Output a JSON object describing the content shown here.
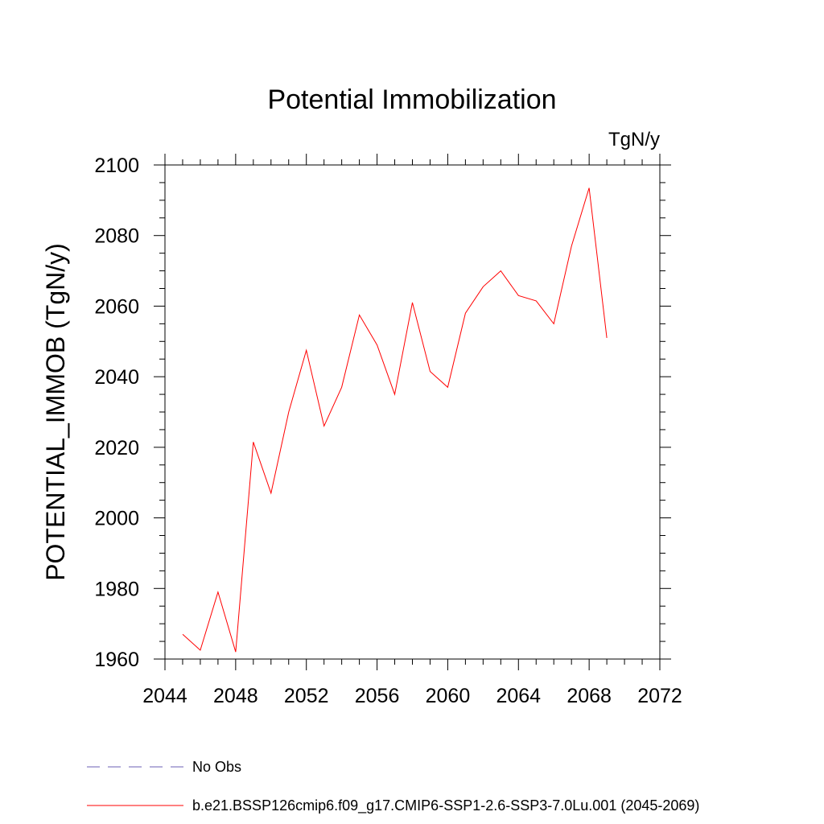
{
  "chart_data": {
    "type": "line",
    "title": "Potential Immobilization",
    "units": "TgN/y",
    "xlabel": "",
    "ylabel": "POTENTIAL_IMMOB  (TgN/y)",
    "xlim": [
      2044,
      2072
    ],
    "ylim": [
      1960,
      2100
    ],
    "x_ticks": [
      2044,
      2048,
      2052,
      2056,
      2060,
      2064,
      2068,
      2072
    ],
    "y_ticks": [
      1960,
      1980,
      2000,
      2020,
      2040,
      2060,
      2080,
      2100
    ],
    "grid": false,
    "legend_position": "bottom-left",
    "series": [
      {
        "name": "No Obs",
        "color": "#6b5fb5",
        "dash": "dashed",
        "x": [],
        "y": []
      },
      {
        "name": "b.e21.BSSP126cmip6.f09_g17.CMIP6-SSP1-2.6-SSP3-7.0Lu.001 (2045-2069)",
        "color": "#ff0000",
        "dash": "solid",
        "x": [
          2045,
          2046,
          2047,
          2048,
          2049,
          2050,
          2051,
          2052,
          2053,
          2054,
          2055,
          2056,
          2057,
          2058,
          2059,
          2060,
          2061,
          2062,
          2063,
          2064,
          2065,
          2066,
          2067,
          2068,
          2069
        ],
        "y": [
          1967,
          1962.5,
          1979,
          1962,
          2021.5,
          2007,
          2030,
          2047.5,
          2026,
          2037,
          2057.5,
          2049,
          2035,
          2061,
          2041.5,
          2037,
          2058,
          2065.5,
          2070,
          2063,
          2061.5,
          2055,
          2077,
          2093.5,
          2051
        ]
      }
    ]
  }
}
